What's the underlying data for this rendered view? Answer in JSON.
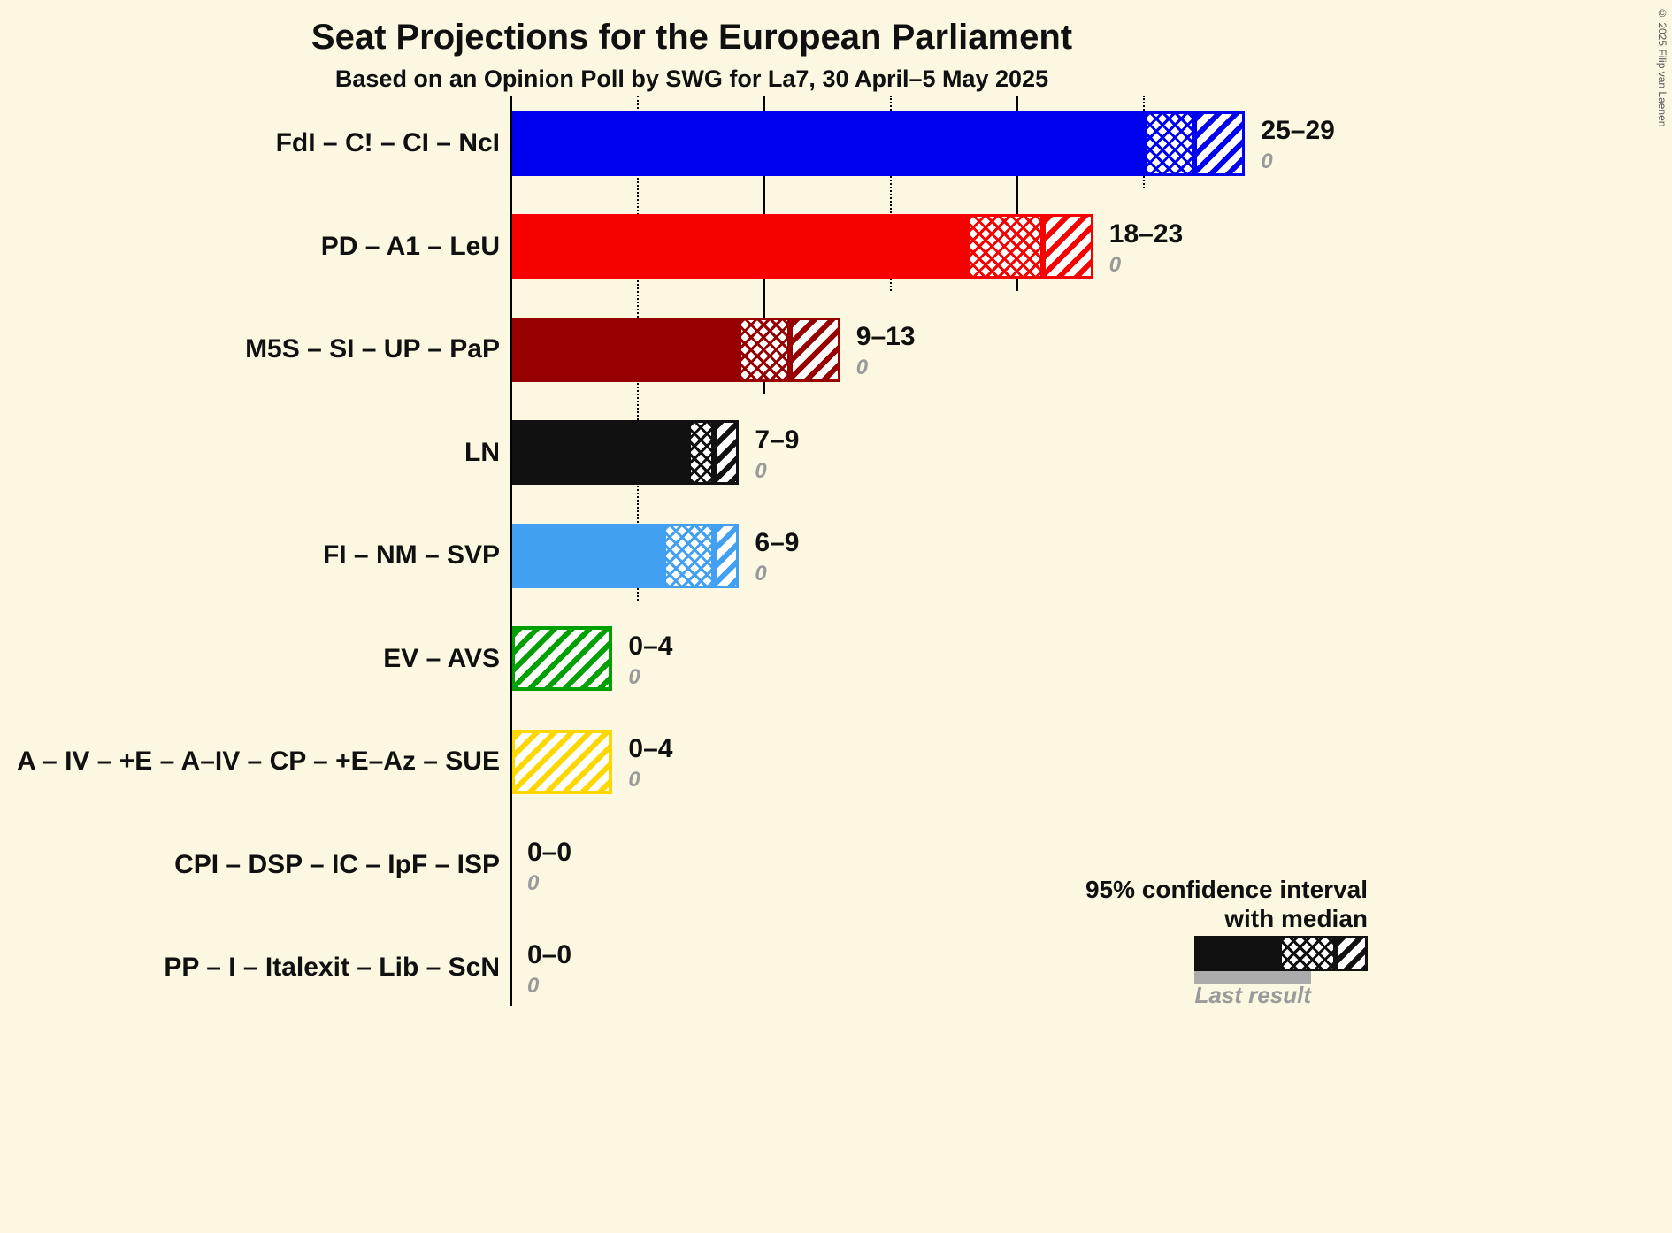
{
  "chart_data": {
    "type": "bar",
    "orientation": "horizontal",
    "title": "Seat Projections for the European Parliament",
    "subtitle": "Based on an Opinion Poll by SWG for La7, 30 April–5 May 2025",
    "unit": "seats",
    "x_axis": {
      "min": 0,
      "max": 29,
      "gridlines": [
        {
          "value": 5,
          "style": "dotted"
        },
        {
          "value": 10,
          "style": "solid"
        },
        {
          "value": 15,
          "style": "dotted"
        },
        {
          "value": 20,
          "style": "solid"
        },
        {
          "value": 25,
          "style": "dotted"
        }
      ]
    },
    "bars": [
      {
        "label": "FdI – C! – CI – NcI",
        "color": "#0000f0",
        "ci_low": 25,
        "median": 27,
        "ci_high": 29,
        "range_label": "25–29",
        "last_result": 0,
        "last_result_label": "0"
      },
      {
        "label": "PD – A1 – LeU",
        "color": "#f60000",
        "ci_low": 18,
        "median": 21,
        "ci_high": 23,
        "range_label": "18–23",
        "last_result": 0,
        "last_result_label": "0"
      },
      {
        "label": "M5S – SI – UP – PaP",
        "color": "#970000",
        "ci_low": 9,
        "median": 11,
        "ci_high": 13,
        "range_label": "9–13",
        "last_result": 0,
        "last_result_label": "0"
      },
      {
        "label": "LN",
        "color": "#111111",
        "ci_low": 7,
        "median": 8,
        "ci_high": 9,
        "range_label": "7–9",
        "last_result": 0,
        "last_result_label": "0"
      },
      {
        "label": "FI – NM – SVP",
        "color": "#42a0f2",
        "ci_low": 6,
        "median": 8,
        "ci_high": 9,
        "range_label": "6–9",
        "last_result": 0,
        "last_result_label": "0"
      },
      {
        "label": "EV – AVS",
        "color": "#00a000",
        "ci_low": 0,
        "median": 0,
        "ci_high": 4,
        "range_label": "0–4",
        "last_result": 0,
        "last_result_label": "0"
      },
      {
        "label": "A – IV – +E – A–IV – CP – +E–Az – SUE",
        "color": "#ffd700",
        "ci_low": 0,
        "median": 0,
        "ci_high": 4,
        "range_label": "0–4",
        "last_result": 0,
        "last_result_label": "0"
      },
      {
        "label": "CPI – DSP – IC – IpF – ISP",
        "color": "#111111",
        "ci_low": 0,
        "median": 0,
        "ci_high": 0,
        "range_label": "0–0",
        "last_result": 0,
        "last_result_label": "0"
      },
      {
        "label": "PP – I – Italexit – Lib – ScN",
        "color": "#111111",
        "ci_low": 0,
        "median": 0,
        "ci_high": 0,
        "range_label": "0–0",
        "last_result": 0,
        "last_result_label": "0"
      }
    ],
    "legend": {
      "line1": "95% confidence interval",
      "line2": "with median",
      "last_result": "Last result"
    }
  },
  "copyright": "© 2025 Filip van Laenen",
  "colors": {
    "background": "#fcf7e0",
    "text": "#101010",
    "muted": "#9a9a9a",
    "last_result_bar": "#ababab"
  }
}
